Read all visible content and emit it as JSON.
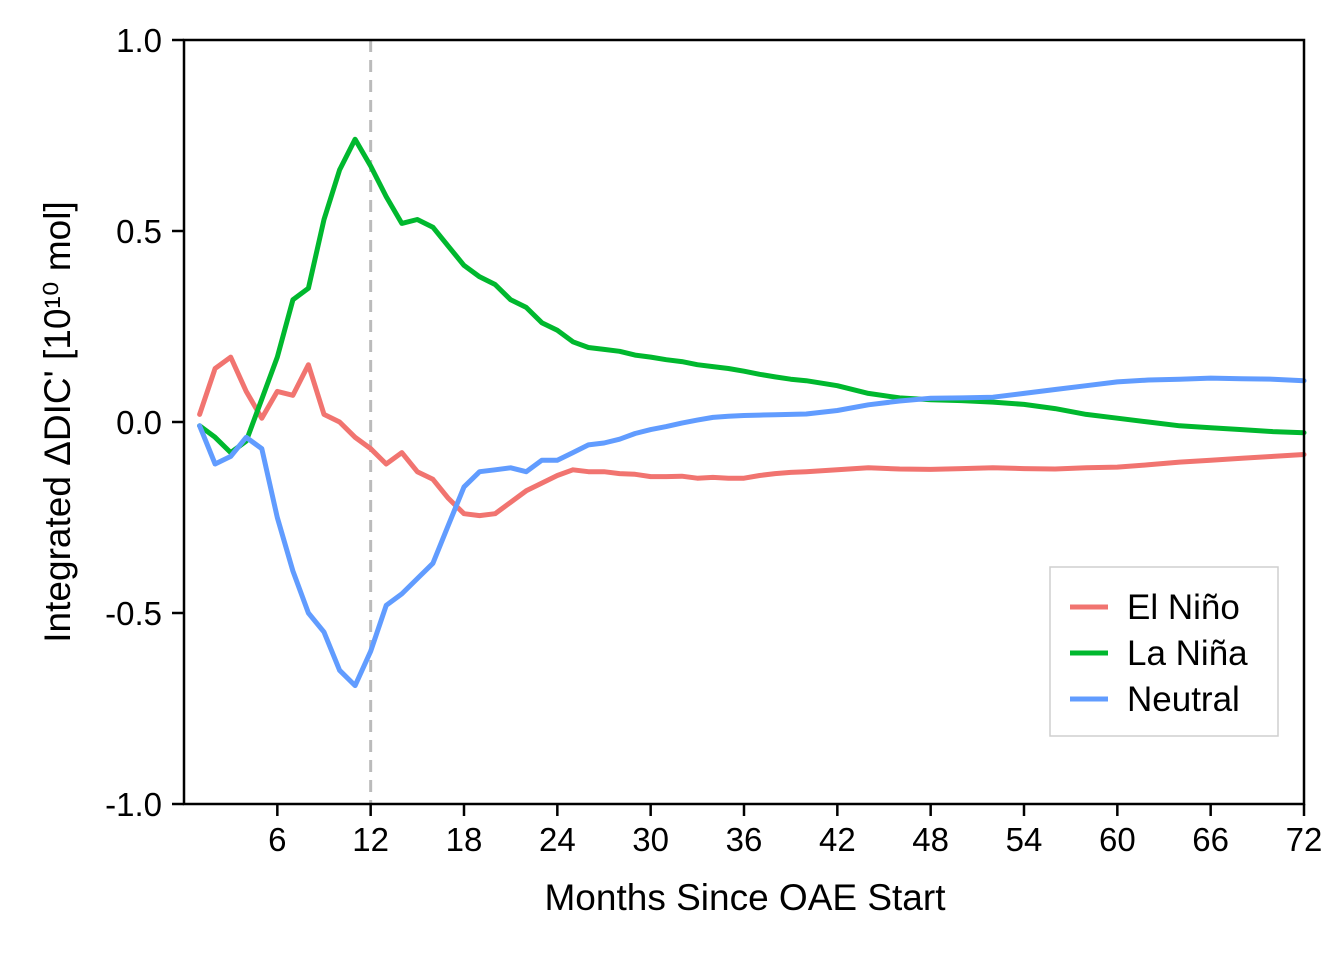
{
  "chart_data": {
    "type": "line",
    "xlabel": "Months Since OAE Start",
    "ylabel": "Integrated ΔDIC' [10¹⁰ mol]",
    "xlim": [
      0,
      72
    ],
    "ylim": [
      -1.0,
      1.0
    ],
    "xticks": [
      6,
      12,
      18,
      24,
      30,
      36,
      42,
      48,
      54,
      60,
      66,
      72
    ],
    "xtick_labels": [
      "6",
      "12",
      "18",
      "24",
      "30",
      "36",
      "42",
      "48",
      "54",
      "60",
      "66",
      "72"
    ],
    "yticks": [
      -1.0,
      -0.5,
      0.0,
      0.5,
      1.0
    ],
    "ytick_labels": [
      "-1.0",
      "-0.5",
      "0.0",
      "0.5",
      "1.0"
    ],
    "reference_line": {
      "x": 12,
      "style": "dashed",
      "color": "#bbbbbb"
    },
    "grid": false,
    "legend_position": "bottom-right",
    "series": [
      {
        "name": "El Niño",
        "color": "#F17470",
        "x": [
          1,
          2,
          3,
          4,
          5,
          6,
          7,
          8,
          9,
          10,
          11,
          12,
          13,
          14,
          15,
          16,
          17,
          18,
          19,
          20,
          21,
          22,
          23,
          24,
          25,
          26,
          27,
          28,
          29,
          30,
          31,
          32,
          33,
          34,
          35,
          36,
          37,
          38,
          39,
          40,
          42,
          44,
          46,
          48,
          50,
          52,
          54,
          56,
          58,
          60,
          62,
          64,
          66,
          68,
          70,
          72
        ],
        "values": [
          0.02,
          0.14,
          0.17,
          0.08,
          0.01,
          0.08,
          0.07,
          0.15,
          0.02,
          0.0,
          -0.04,
          -0.07,
          -0.11,
          -0.08,
          -0.13,
          -0.15,
          -0.2,
          -0.24,
          -0.245,
          -0.24,
          -0.21,
          -0.18,
          -0.16,
          -0.14,
          -0.125,
          -0.13,
          -0.13,
          -0.135,
          -0.137,
          -0.143,
          -0.143,
          -0.142,
          -0.147,
          -0.145,
          -0.147,
          -0.147,
          -0.14,
          -0.135,
          -0.132,
          -0.13,
          -0.125,
          -0.12,
          -0.123,
          -0.124,
          -0.122,
          -0.12,
          -0.122,
          -0.123,
          -0.12,
          -0.118,
          -0.112,
          -0.105,
          -0.1,
          -0.095,
          -0.09,
          -0.085
        ]
      },
      {
        "name": "La Niña",
        "color": "#00B82E",
        "x": [
          1,
          2,
          3,
          4,
          5,
          6,
          7,
          8,
          9,
          10,
          11,
          12,
          13,
          14,
          15,
          16,
          17,
          18,
          19,
          20,
          21,
          22,
          23,
          24,
          25,
          26,
          27,
          28,
          29,
          30,
          31,
          32,
          33,
          34,
          35,
          36,
          37,
          38,
          39,
          40,
          42,
          44,
          46,
          48,
          50,
          52,
          54,
          56,
          58,
          60,
          62,
          64,
          66,
          68,
          70,
          72
        ],
        "values": [
          -0.01,
          -0.04,
          -0.08,
          -0.05,
          0.06,
          0.17,
          0.32,
          0.35,
          0.53,
          0.66,
          0.74,
          0.67,
          0.59,
          0.52,
          0.53,
          0.51,
          0.46,
          0.41,
          0.38,
          0.36,
          0.32,
          0.3,
          0.26,
          0.24,
          0.21,
          0.195,
          0.19,
          0.185,
          0.175,
          0.17,
          0.163,
          0.158,
          0.15,
          0.145,
          0.14,
          0.133,
          0.125,
          0.118,
          0.112,
          0.108,
          0.095,
          0.075,
          0.063,
          0.058,
          0.056,
          0.052,
          0.046,
          0.035,
          0.02,
          0.01,
          0.0,
          -0.01,
          -0.015,
          -0.02,
          -0.025,
          -0.028
        ]
      },
      {
        "name": "Neutral",
        "color": "#619CFF",
        "x": [
          1,
          2,
          3,
          4,
          5,
          6,
          7,
          8,
          9,
          10,
          11,
          12,
          13,
          14,
          15,
          16,
          17,
          18,
          19,
          20,
          21,
          22,
          23,
          24,
          25,
          26,
          27,
          28,
          29,
          30,
          31,
          32,
          33,
          34,
          35,
          36,
          37,
          38,
          39,
          40,
          42,
          44,
          46,
          48,
          50,
          52,
          54,
          56,
          58,
          60,
          62,
          64,
          66,
          68,
          70,
          72
        ],
        "values": [
          -0.01,
          -0.11,
          -0.09,
          -0.04,
          -0.07,
          -0.25,
          -0.39,
          -0.5,
          -0.55,
          -0.65,
          -0.69,
          -0.6,
          -0.48,
          -0.45,
          -0.41,
          -0.37,
          -0.27,
          -0.17,
          -0.13,
          -0.125,
          -0.12,
          -0.13,
          -0.1,
          -0.1,
          -0.08,
          -0.06,
          -0.055,
          -0.045,
          -0.03,
          -0.02,
          -0.012,
          -0.003,
          0.005,
          0.012,
          0.015,
          0.017,
          0.018,
          0.019,
          0.02,
          0.021,
          0.03,
          0.045,
          0.055,
          0.062,
          0.063,
          0.065,
          0.075,
          0.085,
          0.095,
          0.105,
          0.11,
          0.112,
          0.115,
          0.113,
          0.112,
          0.108
        ]
      }
    ]
  }
}
